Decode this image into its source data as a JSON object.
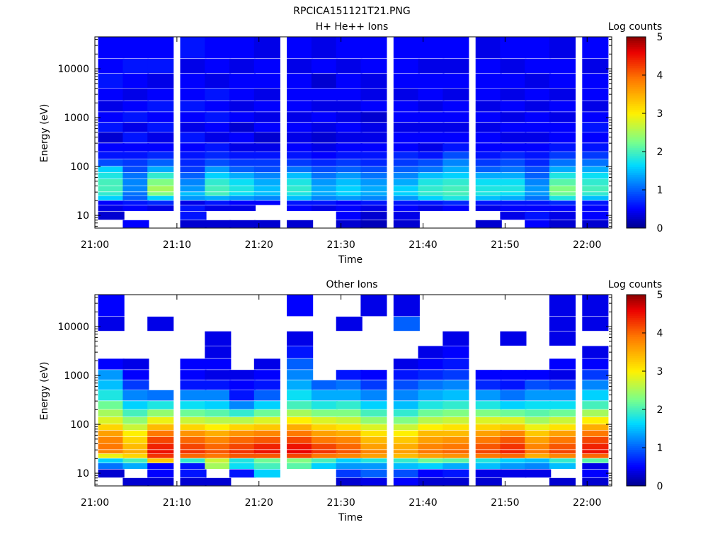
{
  "figure": {
    "title": "RPCICA151121T21.PNG"
  },
  "chart_data": [
    {
      "type": "heatmap",
      "title": "H+ He++ Ions",
      "xlabel": "Time",
      "ylabel": "Energy (eV)",
      "x_ticks": [
        "21:00",
        "21:10",
        "21:20",
        "21:30",
        "21:40",
        "21:50",
        "22:00"
      ],
      "x_range": [
        "21:00",
        "22:03"
      ],
      "y_scale": "log",
      "y_range": [
        5.5,
        45000
      ],
      "y_ticks": [
        {
          "value": 10,
          "label": "10"
        },
        {
          "value": 100,
          "label": "100"
        },
        {
          "value": 1000,
          "label": "1000"
        },
        {
          "value": 10000,
          "label": "10000"
        }
      ],
      "colorbar": {
        "label": "Log counts",
        "range": [
          0,
          5
        ],
        "ticks": [
          "0",
          "1",
          "2",
          "3",
          "4",
          "5"
        ]
      },
      "time_bins": [
        "21:02",
        "21:05",
        "21:08",
        "21:12",
        "21:15",
        "21:18",
        "21:21",
        "21:25",
        "21:28",
        "21:31",
        "21:34",
        "21:38",
        "21:41",
        "21:44",
        "21:48",
        "21:51",
        "21:54",
        "21:57",
        "22:01"
      ],
      "energy_band_edges_eV": [
        5.5,
        8,
        12,
        16,
        20,
        25,
        30,
        40,
        55,
        75,
        100,
        140,
        200,
        300,
        500,
        800,
        1300,
        2200,
        4000,
        8000,
        16000,
        45000
      ],
      "log_counts_by_time_bin": [
        [
          null,
          0.3,
          0.4,
          0.5,
          1.6,
          1.9,
          2.0,
          2.0,
          1.8,
          1.6,
          0.9,
          0.6,
          0.5,
          0.3,
          0.6,
          0.5,
          0.4,
          0.5,
          0.6,
          0.5,
          0.5
        ],
        [
          0.5,
          null,
          0.5,
          0.6,
          1.0,
          1.1,
          1.2,
          1.2,
          1.1,
          0.9,
          0.8,
          0.6,
          0.5,
          0.6,
          0.4,
          0.6,
          0.5,
          0.4,
          0.5,
          0.6,
          0.5
        ],
        [
          null,
          null,
          0.4,
          0.7,
          1.6,
          2.3,
          2.5,
          2.3,
          1.9,
          1.4,
          1.0,
          0.7,
          0.5,
          0.4,
          0.6,
          0.5,
          0.6,
          0.5,
          0.4,
          0.6,
          0.5
        ],
        [
          0.3,
          0.6,
          0.6,
          0.4,
          1.3,
          1.5,
          1.3,
          1.2,
          1.0,
          0.8,
          0.7,
          0.6,
          0.5,
          0.6,
          0.4,
          0.5,
          0.6,
          0.5,
          0.5,
          0.4,
          0.6
        ],
        [
          0.3,
          null,
          0.4,
          0.6,
          1.4,
          2.0,
          2.0,
          1.9,
          1.6,
          1.3,
          0.9,
          0.7,
          0.6,
          0.4,
          0.5,
          0.6,
          0.5,
          0.6,
          0.4,
          0.5,
          0.5
        ],
        [
          0.3,
          null,
          0.4,
          0.5,
          1.3,
          1.7,
          1.8,
          1.7,
          1.4,
          1.0,
          0.8,
          0.6,
          0.4,
          0.5,
          0.3,
          0.5,
          0.4,
          0.5,
          0.5,
          0.4,
          0.5
        ],
        [
          0.3,
          null,
          null,
          0.5,
          1.2,
          1.5,
          1.5,
          1.4,
          1.2,
          0.9,
          0.8,
          0.6,
          0.4,
          0.3,
          0.5,
          0.4,
          0.5,
          0.4,
          0.5,
          0.5,
          0.4
        ],
        [
          0.3,
          null,
          0.5,
          0.6,
          1.5,
          1.8,
          1.9,
          1.8,
          1.5,
          1.1,
          0.8,
          0.6,
          0.5,
          0.4,
          0.5,
          0.4,
          0.5,
          0.5,
          0.5,
          0.4,
          0.5
        ],
        [
          null,
          null,
          0.4,
          0.6,
          1.2,
          1.4,
          1.4,
          1.3,
          1.1,
          0.9,
          0.7,
          0.5,
          0.4,
          0.3,
          0.4,
          0.5,
          0.4,
          0.5,
          0.3,
          0.5,
          0.4
        ],
        [
          0.3,
          0.5,
          0.5,
          0.5,
          1.3,
          1.6,
          1.6,
          1.5,
          1.3,
          1.0,
          0.8,
          0.6,
          0.5,
          0.4,
          0.5,
          0.4,
          0.4,
          0.5,
          0.5,
          0.4,
          0.5
        ],
        [
          0.2,
          0.3,
          0.4,
          0.6,
          1.2,
          1.4,
          1.4,
          1.3,
          1.1,
          0.9,
          0.7,
          0.6,
          0.5,
          0.4,
          0.4,
          0.3,
          0.5,
          0.4,
          0.4,
          0.5,
          0.5
        ],
        [
          0.3,
          0.4,
          0.5,
          0.6,
          1.3,
          1.6,
          1.6,
          1.4,
          1.2,
          1.0,
          0.8,
          0.7,
          0.5,
          0.5,
          0.4,
          0.5,
          0.5,
          0.4,
          0.5,
          0.5,
          0.5
        ],
        [
          null,
          null,
          0.4,
          0.6,
          1.6,
          1.9,
          1.9,
          1.8,
          1.5,
          1.1,
          0.9,
          0.6,
          0.4,
          0.5,
          0.4,
          0.5,
          0.4,
          0.5,
          0.5,
          0.4,
          0.5
        ],
        [
          null,
          null,
          0.5,
          0.7,
          1.8,
          2.0,
          2.0,
          1.9,
          1.6,
          1.4,
          1.2,
          0.9,
          0.6,
          0.5,
          0.4,
          0.5,
          0.5,
          0.4,
          0.5,
          0.4,
          0.5
        ],
        [
          0.3,
          null,
          0.4,
          0.6,
          1.5,
          1.8,
          1.8,
          1.7,
          1.4,
          1.0,
          0.8,
          0.6,
          0.5,
          0.5,
          0.4,
          0.5,
          0.4,
          0.5,
          0.5,
          0.5,
          0.4
        ],
        [
          null,
          0.4,
          0.5,
          0.6,
          1.4,
          1.7,
          1.8,
          1.7,
          1.4,
          1.1,
          0.9,
          0.7,
          0.5,
          0.4,
          0.5,
          0.4,
          0.5,
          0.4,
          0.5,
          0.4,
          0.5
        ],
        [
          0.5,
          0.6,
          0.5,
          0.6,
          1.1,
          1.3,
          1.3,
          1.2,
          1.0,
          0.9,
          0.7,
          0.6,
          0.5,
          0.4,
          0.5,
          0.5,
          0.4,
          0.5,
          0.4,
          0.5,
          0.5
        ],
        [
          0.3,
          0.4,
          0.5,
          0.7,
          1.8,
          2.2,
          2.3,
          2.1,
          1.8,
          1.4,
          1.1,
          0.8,
          0.6,
          0.5,
          0.5,
          0.4,
          0.5,
          0.4,
          0.5,
          0.5,
          0.4
        ],
        [
          0.3,
          0.5,
          0.5,
          0.6,
          1.5,
          1.9,
          2.0,
          1.9,
          1.7,
          1.4,
          1.1,
          0.8,
          0.6,
          0.5,
          0.6,
          0.5,
          0.4,
          0.5,
          0.5,
          0.4,
          0.5
        ]
      ]
    },
    {
      "type": "heatmap",
      "title": "Other Ions",
      "xlabel": "Time",
      "ylabel": "Energy (eV)",
      "x_ticks": [
        "21:00",
        "21:10",
        "21:20",
        "21:30",
        "21:40",
        "21:50",
        "22:00"
      ],
      "x_range": [
        "21:00",
        "22:03"
      ],
      "y_scale": "log",
      "y_range": [
        5.5,
        45000
      ],
      "y_ticks": [
        {
          "value": 10,
          "label": "10"
        },
        {
          "value": 100,
          "label": "100"
        },
        {
          "value": 1000,
          "label": "1000"
        },
        {
          "value": 10000,
          "label": "10000"
        }
      ],
      "colorbar": {
        "label": "Log counts",
        "range": [
          0,
          5
        ],
        "ticks": [
          "0",
          "1",
          "2",
          "3",
          "4",
          "5"
        ]
      },
      "time_bins": [
        "21:02",
        "21:05",
        "21:08",
        "21:12",
        "21:15",
        "21:18",
        "21:21",
        "21:25",
        "21:28",
        "21:31",
        "21:34",
        "21:38",
        "21:41",
        "21:44",
        "21:48",
        "21:51",
        "21:54",
        "21:57",
        "22:01"
      ],
      "energy_band_edges_eV": [
        5.5,
        8,
        12,
        16,
        20,
        25,
        30,
        40,
        55,
        75,
        100,
        140,
        200,
        300,
        500,
        800,
        1300,
        2200,
        4000,
        8000,
        16000,
        45000
      ],
      "log_counts_by_time_bin": [
        [
          null,
          0.3,
          1.1,
          1.6,
          2.9,
          3.8,
          3.9,
          3.8,
          3.6,
          3.2,
          2.8,
          2.5,
          2.2,
          1.8,
          1.5,
          1.3,
          0.5,
          null,
          null,
          0.4,
          0.5
        ],
        [
          0.3,
          null,
          1.4,
          2.0,
          3.2,
          3.5,
          3.4,
          3.2,
          3.0,
          2.7,
          2.4,
          2.0,
          1.6,
          1.2,
          0.8,
          0.5,
          0.4,
          null,
          null,
          null,
          null
        ],
        [
          0.3,
          0.5,
          0.5,
          3.3,
          4.3,
          4.5,
          4.4,
          4.2,
          3.9,
          3.4,
          2.9,
          2.4,
          1.8,
          1.1,
          null,
          null,
          null,
          null,
          null,
          0.4,
          null
        ],
        [
          0.3,
          0.6,
          0.6,
          1.9,
          4.0,
          4.3,
          4.2,
          4.0,
          3.7,
          3.2,
          2.7,
          2.2,
          1.7,
          1.2,
          0.6,
          0.5,
          0.5,
          null,
          null,
          null,
          null
        ],
        [
          0.3,
          null,
          2.5,
          2.7,
          3.9,
          4.1,
          4.0,
          3.8,
          3.5,
          3.0,
          2.6,
          2.1,
          1.6,
          1.2,
          0.6,
          0.4,
          0.5,
          0.4,
          0.4,
          null,
          null
        ],
        [
          null,
          0.6,
          1.7,
          1.8,
          4.1,
          4.3,
          4.2,
          4.0,
          3.7,
          3.2,
          2.6,
          1.9,
          1.2,
          0.6,
          0.5,
          0.4,
          null,
          null,
          null,
          null,
          null
        ],
        [
          null,
          1.6,
          2.0,
          2.2,
          4.1,
          4.5,
          4.4,
          4.1,
          3.8,
          3.3,
          2.8,
          2.2,
          1.6,
          1.0,
          0.6,
          0.5,
          0.4,
          null,
          null,
          null,
          null
        ],
        [
          null,
          null,
          2.1,
          2.3,
          4.2,
          4.6,
          4.5,
          4.2,
          3.9,
          3.5,
          3.0,
          2.5,
          2.0,
          1.7,
          1.4,
          1.2,
          1.0,
          0.6,
          0.4,
          null,
          0.5
        ],
        [
          null,
          null,
          1.6,
          2.0,
          3.9,
          4.3,
          4.2,
          3.9,
          3.6,
          3.2,
          2.8,
          2.3,
          1.8,
          1.4,
          1.0,
          null,
          null,
          null,
          null,
          null,
          null
        ],
        [
          0.3,
          0.8,
          1.3,
          1.6,
          3.8,
          4.1,
          4.0,
          3.8,
          3.5,
          3.1,
          2.7,
          2.3,
          1.9,
          1.4,
          1.1,
          0.6,
          null,
          null,
          null,
          0.4,
          null
        ],
        [
          0.4,
          1.0,
          1.3,
          1.8,
          3.6,
          3.8,
          3.6,
          3.4,
          3.1,
          2.8,
          2.4,
          2.0,
          1.6,
          1.2,
          0.8,
          0.5,
          null,
          null,
          null,
          null,
          0.4
        ],
        [
          0.5,
          0.9,
          1.5,
          1.9,
          3.4,
          3.6,
          3.5,
          3.3,
          3.0,
          2.7,
          2.3,
          1.9,
          1.5,
          1.2,
          0.9,
          0.6,
          0.4,
          null,
          null,
          1.0,
          0.4
        ],
        [
          0.3,
          0.5,
          1.6,
          2.2,
          3.6,
          3.9,
          3.8,
          3.6,
          3.4,
          3.0,
          2.6,
          2.2,
          1.8,
          1.4,
          1.1,
          0.7,
          0.5,
          0.4,
          null,
          null,
          null
        ],
        [
          0.3,
          0.6,
          1.4,
          2.1,
          3.7,
          4.0,
          3.9,
          3.7,
          3.4,
          3.1,
          2.7,
          2.3,
          1.9,
          1.5,
          1.2,
          0.8,
          0.6,
          0.5,
          0.4,
          null,
          null
        ],
        [
          0.3,
          0.4,
          1.5,
          1.8,
          3.9,
          4.2,
          4.1,
          3.9,
          3.6,
          3.2,
          2.8,
          2.3,
          1.8,
          1.3,
          0.7,
          0.5,
          null,
          null,
          null,
          null,
          null
        ],
        [
          null,
          0.4,
          1.3,
          1.6,
          4.0,
          4.4,
          4.3,
          4.1,
          3.8,
          3.3,
          2.8,
          2.2,
          1.6,
          1.1,
          0.6,
          0.5,
          null,
          null,
          0.4,
          null,
          null
        ],
        [
          null,
          0.4,
          1.2,
          1.5,
          3.5,
          3.9,
          3.8,
          3.6,
          3.3,
          2.9,
          2.5,
          2.1,
          1.7,
          1.3,
          0.9,
          0.5,
          null,
          null,
          null,
          null,
          null
        ],
        [
          0.3,
          null,
          1.5,
          1.9,
          3.8,
          4.2,
          4.1,
          3.9,
          3.6,
          3.1,
          2.7,
          2.2,
          1.7,
          1.3,
          0.8,
          0.4,
          0.5,
          null,
          0.4,
          0.4,
          0.4
        ],
        [
          0.3,
          0.5,
          0.4,
          2.1,
          4.0,
          4.5,
          4.4,
          4.2,
          3.9,
          3.5,
          3.0,
          2.5,
          2.0,
          1.6,
          1.2,
          0.8,
          0.5,
          0.4,
          null,
          0.4,
          0.4
        ]
      ]
    }
  ]
}
